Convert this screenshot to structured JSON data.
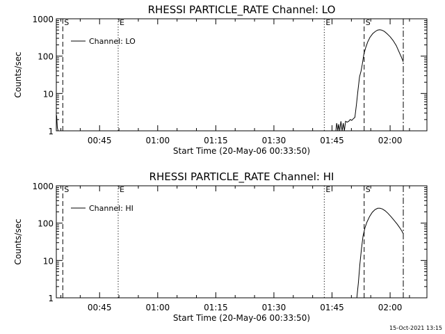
{
  "footer_timestamp": "15-Oct-2021 13:15",
  "chart_data": [
    {
      "type": "line",
      "title": "RHESSI PARTICLE_RATE Channel: LO",
      "xlabel": "Start Time (20-May-06 00:33:50)",
      "ylabel": "Counts/sec",
      "yscale": "log",
      "ylim": [
        1,
        1000
      ],
      "xlim_minutes_after_0000": [
        33.83,
        129.5
      ],
      "xticks": [
        {
          "t": 45,
          "label": "00:45"
        },
        {
          "t": 60,
          "label": "01:00"
        },
        {
          "t": 75,
          "label": "01:15"
        },
        {
          "t": 90,
          "label": "01:30"
        },
        {
          "t": 105,
          "label": "01:45"
        },
        {
          "t": 120,
          "label": "02:00"
        }
      ],
      "yticks": [
        {
          "v": 1,
          "label": "1"
        },
        {
          "v": 10,
          "label": "10"
        },
        {
          "v": 100,
          "label": "100"
        },
        {
          "v": 1000,
          "label": "1000"
        }
      ],
      "legend": {
        "label": "Channel: LO",
        "position": "top-left"
      },
      "markers": [
        {
          "t": 35.5,
          "style": "dashed",
          "label": "S"
        },
        {
          "t": 49.8,
          "style": "dotted",
          "label": "E"
        },
        {
          "t": 103.0,
          "style": "dotted",
          "label": "E"
        },
        {
          "t": 113.3,
          "style": "dashed",
          "label": "S"
        },
        {
          "t": 123.4,
          "style": "dashdot",
          "label": ""
        }
      ],
      "series": [
        {
          "name": "Channel: LO",
          "segments": [
            [
              [
                33.9,
                2.6
              ],
              [
                34.1,
                1.2
              ],
              [
                34.3,
                1.0
              ]
            ],
            [
              [
                106.0,
                1.0
              ],
              [
                106.2,
                1.6
              ],
              [
                106.5,
                1.0
              ],
              [
                106.7,
                1.5
              ],
              [
                107.0,
                1.0
              ],
              [
                107.3,
                1.8
              ],
              [
                107.6,
                1.0
              ],
              [
                107.9,
                1.6
              ],
              [
                108.2,
                1.0
              ],
              [
                108.5,
                1.8
              ],
              [
                108.9,
                1.7
              ],
              [
                109.3,
                1.8
              ],
              [
                109.7,
                2.0
              ],
              [
                110.1,
                1.9
              ],
              [
                110.5,
                2.1
              ],
              [
                110.9,
                2.3
              ],
              [
                111.3,
                5
              ],
              [
                111.7,
                12
              ],
              [
                112.1,
                28
              ],
              [
                112.5,
                40
              ],
              [
                112.8,
                60
              ],
              [
                113.2,
                110
              ],
              [
                113.7,
                170
              ],
              [
                114.2,
                240
              ],
              [
                114.8,
                320
              ],
              [
                115.5,
                400
              ],
              [
                116.2,
                460
              ],
              [
                116.8,
                500
              ],
              [
                117.3,
                510
              ],
              [
                117.8,
                500
              ],
              [
                118.5,
                460
              ],
              [
                119.2,
                400
              ],
              [
                120.0,
                330
              ],
              [
                120.8,
                260
              ],
              [
                121.6,
                190
              ],
              [
                122.3,
                130
              ],
              [
                122.9,
                95
              ],
              [
                123.4,
                70
              ]
            ]
          ]
        }
      ]
    },
    {
      "type": "line",
      "title": "RHESSI PARTICLE_RATE Channel: HI",
      "xlabel": "Start Time (20-May-06 00:33:50)",
      "ylabel": "Counts/sec",
      "yscale": "log",
      "ylim": [
        1,
        1000
      ],
      "xlim_minutes_after_0000": [
        33.83,
        129.5
      ],
      "xticks": [
        {
          "t": 45,
          "label": "00:45"
        },
        {
          "t": 60,
          "label": "01:00"
        },
        {
          "t": 75,
          "label": "01:15"
        },
        {
          "t": 90,
          "label": "01:30"
        },
        {
          "t": 105,
          "label": "01:45"
        },
        {
          "t": 120,
          "label": "02:00"
        }
      ],
      "yticks": [
        {
          "v": 1,
          "label": "1"
        },
        {
          "v": 10,
          "label": "10"
        },
        {
          "v": 100,
          "label": "100"
        },
        {
          "v": 1000,
          "label": "1000"
        }
      ],
      "legend": {
        "label": "Channel: HI",
        "position": "top-left"
      },
      "markers": [
        {
          "t": 35.5,
          "style": "dashed",
          "label": "S"
        },
        {
          "t": 49.8,
          "style": "dotted",
          "label": "E"
        },
        {
          "t": 103.0,
          "style": "dotted",
          "label": "E"
        },
        {
          "t": 113.3,
          "style": "dashed",
          "label": "S"
        },
        {
          "t": 123.4,
          "style": "dashdot",
          "label": ""
        }
      ],
      "series": [
        {
          "name": "Channel: HI",
          "segments": [
            [
              [
                111.4,
                1.0
              ],
              [
                111.8,
                2.5
              ],
              [
                112.2,
                8
              ],
              [
                112.6,
                20
              ],
              [
                113.0,
                45
              ],
              [
                113.5,
                75
              ],
              [
                114.0,
                105
              ],
              [
                114.7,
                150
              ],
              [
                115.4,
                195
              ],
              [
                116.1,
                230
              ],
              [
                116.8,
                250
              ],
              [
                117.4,
                250
              ],
              [
                118.0,
                240
              ],
              [
                118.7,
                215
              ],
              [
                119.4,
                185
              ],
              [
                120.2,
                150
              ],
              [
                121.0,
                120
              ],
              [
                121.8,
                95
              ],
              [
                122.5,
                75
              ],
              [
                123.1,
                60
              ],
              [
                123.4,
                52
              ]
            ]
          ]
        }
      ]
    }
  ]
}
